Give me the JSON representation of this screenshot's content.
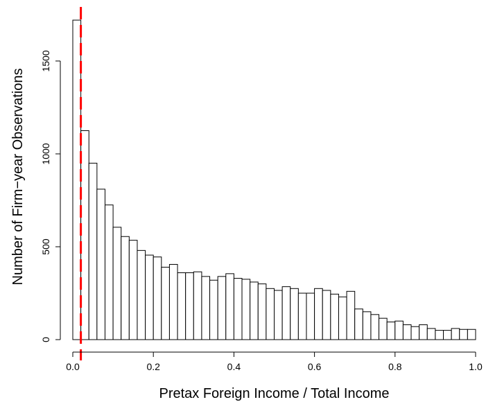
{
  "chart_data": {
    "type": "bar",
    "title": "",
    "xlabel": "Pretax Foreign Income / Total Income",
    "ylabel": "Number of Firm−year Observations",
    "xlim": [
      0,
      1
    ],
    "ylim": [
      0,
      1750
    ],
    "bin_width": 0.02,
    "x_ticks": [
      0.0,
      0.2,
      0.4,
      0.6,
      0.8,
      1.0
    ],
    "x_tick_labels": [
      "0.0",
      "0.2",
      "0.4",
      "0.6",
      "0.8",
      "1.0"
    ],
    "y_ticks": [
      0,
      500,
      1000,
      1500
    ],
    "y_tick_labels": [
      "0",
      "500",
      "1000",
      "1500"
    ],
    "bin_starts": [
      0.0,
      0.02,
      0.04,
      0.06,
      0.08,
      0.1,
      0.12,
      0.14,
      0.16,
      0.18,
      0.2,
      0.22,
      0.24,
      0.26,
      0.28,
      0.3,
      0.32,
      0.34,
      0.36,
      0.38,
      0.4,
      0.42,
      0.44,
      0.46,
      0.48,
      0.5,
      0.52,
      0.54,
      0.56,
      0.58,
      0.6,
      0.62,
      0.64,
      0.66,
      0.68,
      0.7,
      0.72,
      0.74,
      0.76,
      0.78,
      0.8,
      0.82,
      0.84,
      0.86,
      0.88,
      0.9,
      0.92,
      0.94,
      0.96,
      0.98
    ],
    "values": [
      1720,
      1125,
      950,
      810,
      725,
      605,
      555,
      535,
      480,
      455,
      445,
      390,
      405,
      360,
      360,
      365,
      340,
      320,
      340,
      355,
      330,
      325,
      310,
      300,
      275,
      265,
      285,
      275,
      250,
      250,
      275,
      265,
      245,
      230,
      260,
      165,
      150,
      135,
      115,
      95,
      100,
      80,
      70,
      80,
      60,
      50,
      50,
      60,
      55,
      55
    ],
    "bar_fill": "#ffffff",
    "bar_stroke": "#000000",
    "reference_line": {
      "x": 0.02,
      "color": "#ff0000",
      "style": "dashed"
    },
    "grid": false,
    "legend": "none"
  }
}
